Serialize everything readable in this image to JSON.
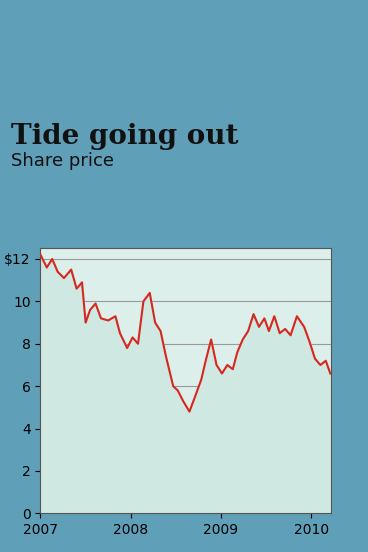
{
  "chart_data": {
    "type": "line",
    "title": "Tide going out",
    "subtitle": "Share price",
    "x": [
      2007.0,
      2007.07,
      2007.13,
      2007.19,
      2007.26,
      2007.34,
      2007.4,
      2007.46,
      2007.5,
      2007.55,
      2007.61,
      2007.67,
      2007.75,
      2007.83,
      2007.88,
      2007.96,
      2008.02,
      2008.08,
      2008.14,
      2008.21,
      2008.27,
      2008.33,
      2008.39,
      2008.47,
      2008.52,
      2008.58,
      2008.65,
      2008.72,
      2008.78,
      2008.83,
      2008.89,
      2008.95,
      2009.01,
      2009.07,
      2009.13,
      2009.18,
      2009.24,
      2009.3,
      2009.36,
      2009.42,
      2009.48,
      2009.53,
      2009.59,
      2009.65,
      2009.71,
      2009.77,
      2009.84,
      2009.92,
      2009.98,
      2010.04,
      2010.1,
      2010.16,
      2010.21
    ],
    "values": [
      12.2,
      11.6,
      12.0,
      11.4,
      11.1,
      11.5,
      10.6,
      10.9,
      9.0,
      9.6,
      9.9,
      9.2,
      9.1,
      9.3,
      8.5,
      7.8,
      8.3,
      8.0,
      10.0,
      10.4,
      9.0,
      8.6,
      7.4,
      6.0,
      5.8,
      5.3,
      4.8,
      5.6,
      6.3,
      7.2,
      8.2,
      7.0,
      6.6,
      7.0,
      6.8,
      7.6,
      8.2,
      8.6,
      9.4,
      8.8,
      9.2,
      8.6,
      9.3,
      8.5,
      8.7,
      8.4,
      9.3,
      8.8,
      8.1,
      7.3,
      7.0,
      7.2,
      6.6
    ],
    "color": "#d6281e",
    "xlim": [
      2007.0,
      2010.22
    ],
    "xticks": [
      2007,
      2008,
      2009,
      2010
    ],
    "ylim": [
      0,
      12.5
    ],
    "yticks": [
      0,
      2,
      4,
      6,
      8,
      10,
      {
        "value": 12,
        "label": "$12"
      }
    ],
    "grid": true
  }
}
